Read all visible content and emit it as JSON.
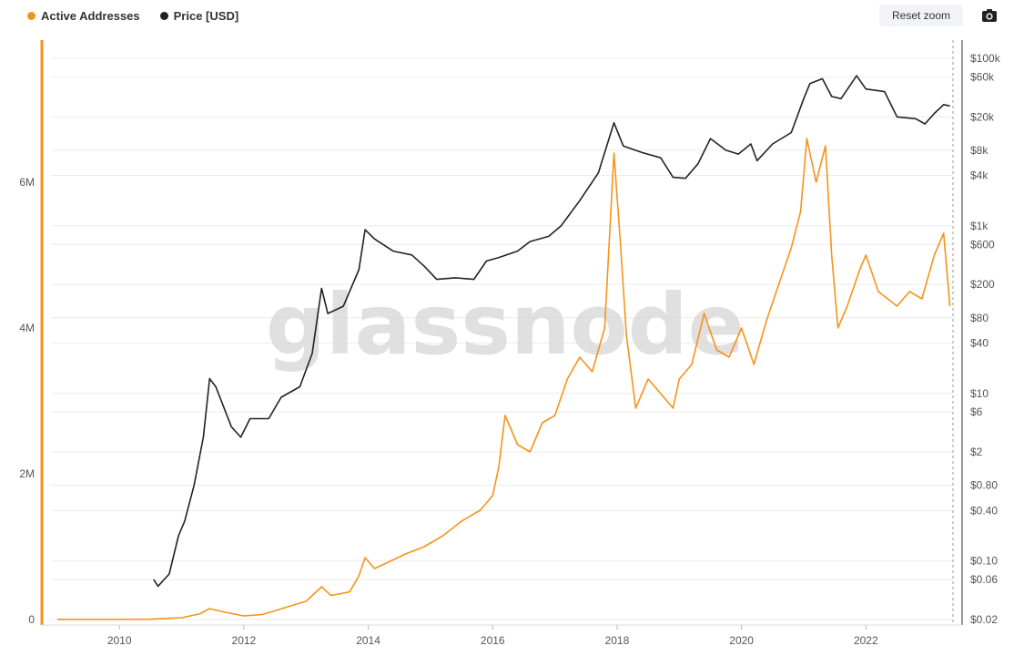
{
  "legend": {
    "series_a": "Active Addresses",
    "series_b": "Price [USD]"
  },
  "controls": {
    "reset_zoom": "Reset zoom",
    "export_icon": "camera-icon"
  },
  "watermark": "glassnode",
  "colors": {
    "active_addresses": "#f7931a",
    "price": "#222222",
    "grid": "#ececec"
  },
  "chart_data": {
    "type": "line",
    "title": "",
    "x_ticks": [
      "2010",
      "2012",
      "2014",
      "2016",
      "2018",
      "2020",
      "2022"
    ],
    "y_left_ticks": [
      "0",
      "2M",
      "4M",
      "6M"
    ],
    "y_right_ticks": [
      "$0.02",
      "$0.06",
      "$0.10",
      "$0.40",
      "$0.80",
      "$2",
      "$6",
      "$10",
      "$40",
      "$80",
      "$200",
      "$600",
      "$1k",
      "$4k",
      "$8k",
      "$20k",
      "$60k",
      "$100k"
    ],
    "x_range": [
      2008.9,
      2023.4
    ],
    "y_left_range": [
      0,
      8000000
    ],
    "y_right_scale": "log",
    "legend_position": "top-left",
    "series": [
      {
        "name": "Active Addresses",
        "axis": "left",
        "points": [
          [
            2009.0,
            2000
          ],
          [
            2010.0,
            3000
          ],
          [
            2010.5,
            5000
          ],
          [
            2011.0,
            25000
          ],
          [
            2011.3,
            80000
          ],
          [
            2011.45,
            150000
          ],
          [
            2011.7,
            100000
          ],
          [
            2012.0,
            50000
          ],
          [
            2012.3,
            70000
          ],
          [
            2012.5,
            120000
          ],
          [
            2012.8,
            200000
          ],
          [
            2013.0,
            250000
          ],
          [
            2013.25,
            450000
          ],
          [
            2013.4,
            330000
          ],
          [
            2013.7,
            380000
          ],
          [
            2013.85,
            600000
          ],
          [
            2013.95,
            850000
          ],
          [
            2014.1,
            700000
          ],
          [
            2014.3,
            780000
          ],
          [
            2014.6,
            900000
          ],
          [
            2014.9,
            1000000
          ],
          [
            2015.2,
            1150000
          ],
          [
            2015.5,
            1350000
          ],
          [
            2015.8,
            1500000
          ],
          [
            2016.0,
            1700000
          ],
          [
            2016.1,
            2100000
          ],
          [
            2016.2,
            2800000
          ],
          [
            2016.4,
            2400000
          ],
          [
            2016.6,
            2300000
          ],
          [
            2016.8,
            2700000
          ],
          [
            2017.0,
            2800000
          ],
          [
            2017.2,
            3300000
          ],
          [
            2017.4,
            3600000
          ],
          [
            2017.6,
            3400000
          ],
          [
            2017.8,
            4000000
          ],
          [
            2017.95,
            6400000
          ],
          [
            2018.05,
            5200000
          ],
          [
            2018.15,
            3900000
          ],
          [
            2018.3,
            2900000
          ],
          [
            2018.5,
            3300000
          ],
          [
            2018.7,
            3100000
          ],
          [
            2018.9,
            2900000
          ],
          [
            2019.0,
            3300000
          ],
          [
            2019.2,
            3500000
          ],
          [
            2019.4,
            4200000
          ],
          [
            2019.6,
            3700000
          ],
          [
            2019.8,
            3600000
          ],
          [
            2020.0,
            4000000
          ],
          [
            2020.2,
            3500000
          ],
          [
            2020.4,
            4100000
          ],
          [
            2020.6,
            4600000
          ],
          [
            2020.8,
            5100000
          ],
          [
            2020.95,
            5600000
          ],
          [
            2021.05,
            6600000
          ],
          [
            2021.2,
            6000000
          ],
          [
            2021.35,
            6500000
          ],
          [
            2021.45,
            5000000
          ],
          [
            2021.55,
            4000000
          ],
          [
            2021.7,
            4300000
          ],
          [
            2021.9,
            4800000
          ],
          [
            2022.0,
            5000000
          ],
          [
            2022.2,
            4500000
          ],
          [
            2022.5,
            4300000
          ],
          [
            2022.7,
            4500000
          ],
          [
            2022.9,
            4400000
          ],
          [
            2023.1,
            5000000
          ],
          [
            2023.25,
            5300000
          ],
          [
            2023.35,
            4300000
          ]
        ]
      },
      {
        "name": "Price [USD]",
        "axis": "right",
        "points": [
          [
            2010.55,
            0.06
          ],
          [
            2010.62,
            0.05
          ],
          [
            2010.8,
            0.07
          ],
          [
            2010.95,
            0.2
          ],
          [
            2011.05,
            0.3
          ],
          [
            2011.2,
            0.8
          ],
          [
            2011.35,
            3
          ],
          [
            2011.45,
            15
          ],
          [
            2011.55,
            12
          ],
          [
            2011.8,
            4
          ],
          [
            2011.95,
            3
          ],
          [
            2012.1,
            5
          ],
          [
            2012.4,
            5
          ],
          [
            2012.6,
            9
          ],
          [
            2012.9,
            12
          ],
          [
            2013.1,
            30
          ],
          [
            2013.25,
            180
          ],
          [
            2013.35,
            90
          ],
          [
            2013.6,
            110
          ],
          [
            2013.85,
            300
          ],
          [
            2013.95,
            900
          ],
          [
            2014.1,
            700
          ],
          [
            2014.4,
            500
          ],
          [
            2014.7,
            450
          ],
          [
            2014.9,
            330
          ],
          [
            2015.1,
            230
          ],
          [
            2015.4,
            240
          ],
          [
            2015.7,
            230
          ],
          [
            2015.9,
            380
          ],
          [
            2016.1,
            420
          ],
          [
            2016.4,
            500
          ],
          [
            2016.6,
            650
          ],
          [
            2016.9,
            750
          ],
          [
            2017.1,
            1000
          ],
          [
            2017.4,
            2000
          ],
          [
            2017.7,
            4300
          ],
          [
            2017.95,
            17000
          ],
          [
            2018.1,
            9000
          ],
          [
            2018.4,
            7500
          ],
          [
            2018.7,
            6500
          ],
          [
            2018.9,
            3800
          ],
          [
            2019.1,
            3700
          ],
          [
            2019.3,
            5500
          ],
          [
            2019.5,
            11000
          ],
          [
            2019.75,
            8000
          ],
          [
            2019.95,
            7200
          ],
          [
            2020.15,
            9500
          ],
          [
            2020.25,
            6000
          ],
          [
            2020.5,
            9500
          ],
          [
            2020.8,
            13000
          ],
          [
            2021.0,
            33000
          ],
          [
            2021.1,
            50000
          ],
          [
            2021.3,
            57000
          ],
          [
            2021.45,
            35000
          ],
          [
            2021.6,
            33000
          ],
          [
            2021.85,
            62000
          ],
          [
            2022.0,
            43000
          ],
          [
            2022.3,
            40000
          ],
          [
            2022.5,
            20000
          ],
          [
            2022.8,
            19000
          ],
          [
            2022.95,
            16500
          ],
          [
            2023.1,
            22000
          ],
          [
            2023.25,
            28000
          ],
          [
            2023.35,
            27000
          ]
        ]
      }
    ]
  }
}
